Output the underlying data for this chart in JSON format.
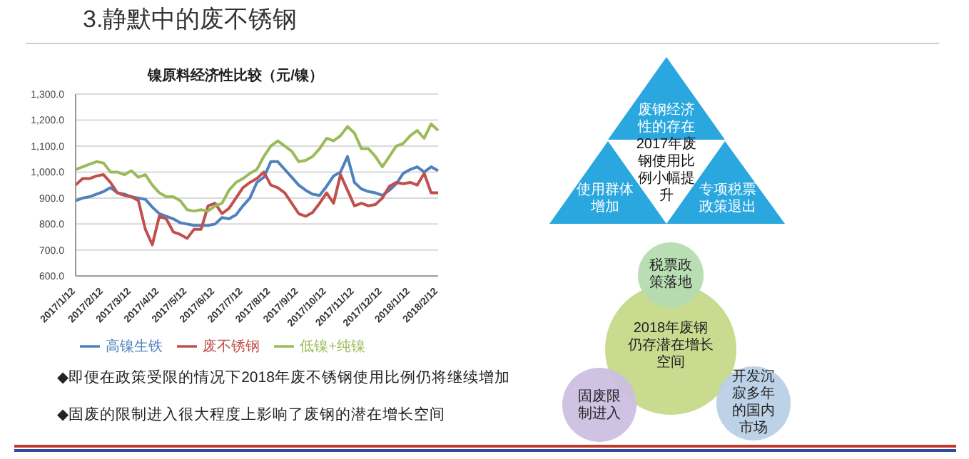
{
  "chart_data": [
    {
      "type": "line",
      "title": "镍原料经济性比较（元/镍）",
      "annotations": [
        "3.静默中的废不锈钢",
        "◆即便在政策受限的情况下2018年废不锈钢使用比例仍将继续增加",
        "◆固废的限制进入很大程度上影响了废钢的潜在增长空间"
      ],
      "categories": [
        "2017/1/12",
        null,
        null,
        null,
        "2017/2/12",
        null,
        null,
        null,
        "2017/3/12",
        null,
        null,
        null,
        "2017/4/12",
        null,
        null,
        null,
        "2017/5/12",
        null,
        null,
        null,
        "2017/6/12",
        null,
        null,
        null,
        "2017/7/12",
        null,
        null,
        null,
        "2017/8/12",
        null,
        null,
        null,
        "2017/9/12",
        null,
        null,
        null,
        "2017/10/12",
        null,
        null,
        null,
        "2017/11/12",
        null,
        null,
        null,
        "2017/12/12",
        null,
        null,
        null,
        "2018/1/12",
        null,
        null,
        null,
        "2018/2/12"
      ],
      "series": [
        {
          "name": "高镍生铁",
          "color": "#4f81bd",
          "values": [
            890,
            900,
            905,
            915,
            925,
            940,
            920,
            915,
            905,
            900,
            895,
            865,
            840,
            830,
            820,
            805,
            800,
            795,
            795,
            795,
            800,
            825,
            820,
            835,
            870,
            900,
            960,
            980,
            1040,
            1040,
            1010,
            980,
            950,
            930,
            915,
            910,
            945,
            985,
            1000,
            1060,
            960,
            935,
            925,
            920,
            910,
            930,
            955,
            995,
            1010,
            1020,
            1000,
            1020,
            1005
          ]
        },
        {
          "name": "废不锈钢",
          "color": "#c0504d",
          "values": [
            950,
            975,
            975,
            985,
            990,
            960,
            920,
            910,
            905,
            890,
            780,
            720,
            830,
            820,
            770,
            760,
            745,
            780,
            780,
            870,
            880,
            840,
            860,
            900,
            940,
            960,
            975,
            1000,
            950,
            940,
            920,
            880,
            840,
            830,
            845,
            880,
            920,
            880,
            990,
            930,
            870,
            880,
            870,
            875,
            900,
            945,
            960,
            955,
            960,
            950,
            995,
            920,
            920
          ]
        },
        {
          "name": "低镍+纯镍",
          "color": "#9bbb59",
          "values": [
            1010,
            1020,
            1030,
            1040,
            1035,
            1000,
            1000,
            990,
            1005,
            980,
            990,
            950,
            920,
            905,
            905,
            890,
            855,
            850,
            855,
            850,
            870,
            880,
            930,
            960,
            975,
            995,
            1010,
            1060,
            1100,
            1120,
            1100,
            1080,
            1040,
            1045,
            1060,
            1090,
            1130,
            1120,
            1140,
            1175,
            1150,
            1090,
            1090,
            1060,
            1020,
            1060,
            1100,
            1110,
            1140,
            1160,
            1130,
            1185,
            1160
          ]
        }
      ],
      "ylim": [
        600,
        1300
      ],
      "yticks": [
        {
          "value": 600,
          "label": "600.0"
        },
        {
          "value": 700,
          "label": "700.0"
        },
        {
          "value": 800,
          "label": "800.0"
        },
        {
          "value": 900,
          "label": "900.0"
        },
        {
          "value": 1000,
          "label": "1,000.0"
        },
        {
          "value": 1100,
          "label": "1,100.0"
        },
        {
          "value": 1200,
          "label": "1,200.0"
        },
        {
          "value": 1300,
          "label": "1,300.0"
        }
      ],
      "grid": "y",
      "legend": "bottom",
      "marker": "none",
      "line_style": "solid"
    },
    {
      "type": "other",
      "annotations": [
        "废钢经济性的存在",
        "2017年废钢使用比例小幅提升",
        "使用群体增加",
        "专项税票政策退出",
        "税票政策落地",
        "2018年废钢仍存潜在增长空间",
        "固废限制进入",
        "开发沉寂多年的国内市场"
      ]
    }
  ]
}
